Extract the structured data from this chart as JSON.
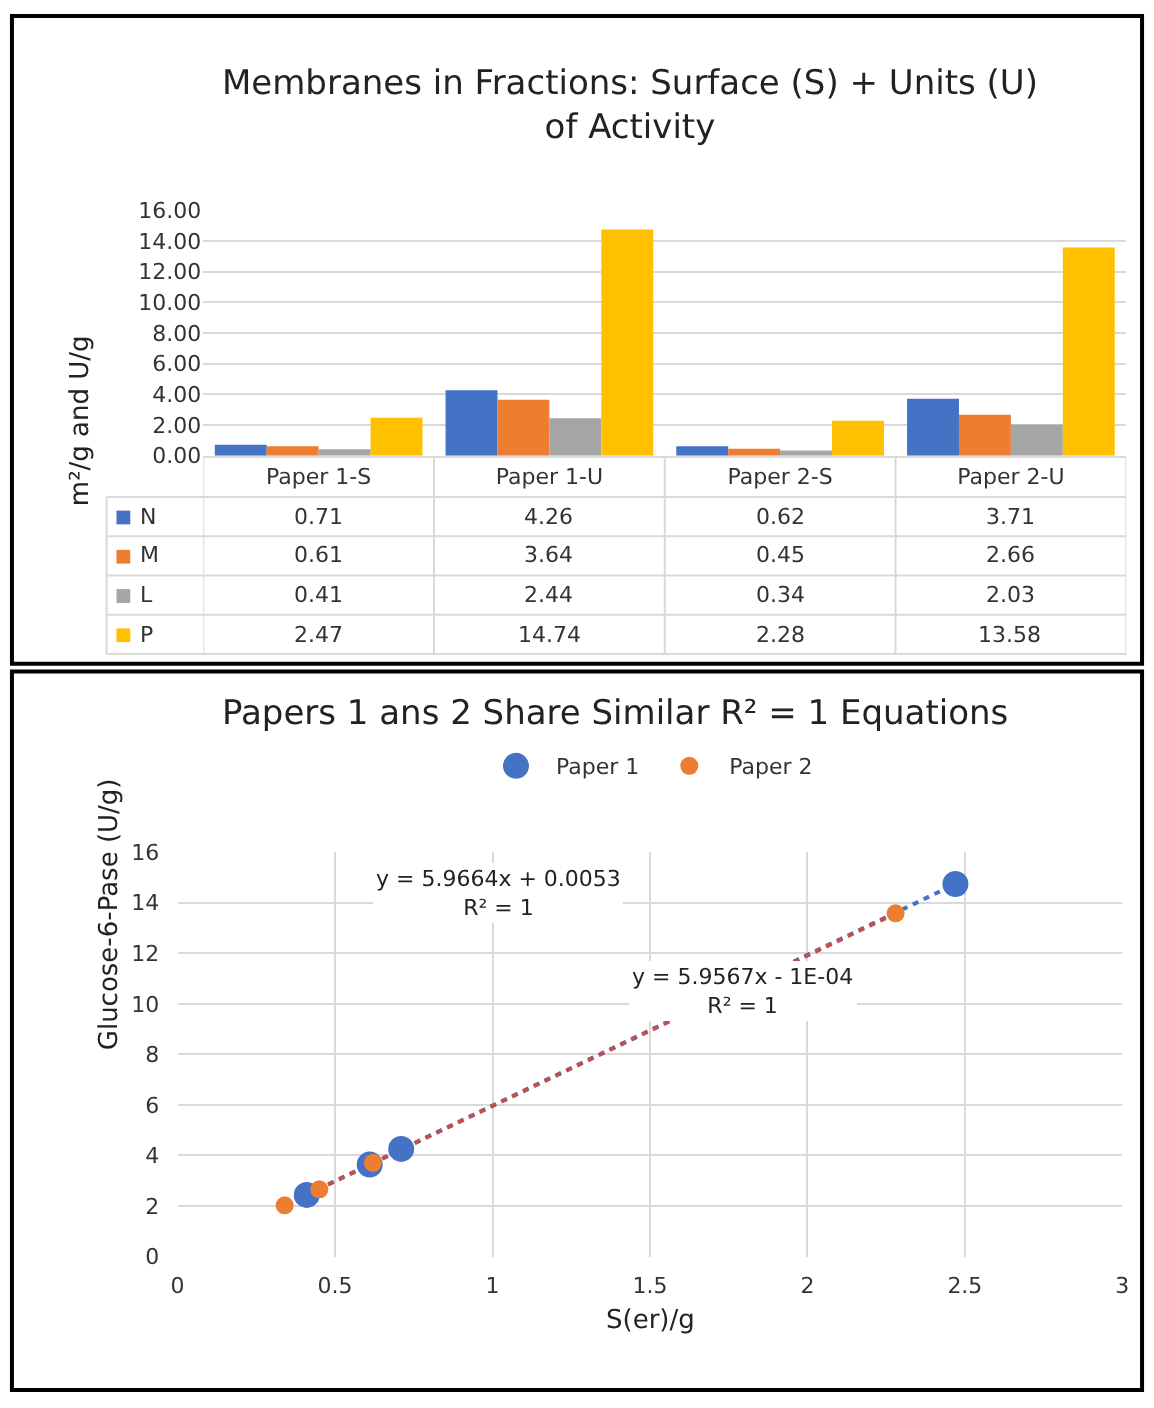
{
  "chart_data": [
    {
      "type": "bar",
      "title": "Membranes in Fractions: Surface (S) + Units (U)\nof Activity",
      "ylabel": "m²/g and U/g",
      "categories": [
        "Paper 1-S",
        "Paper 1-U",
        "Paper 2-S",
        "Paper 2-U"
      ],
      "series": [
        {
          "name": "N",
          "color": "#4472c4",
          "values": [
            0.71,
            4.26,
            0.62,
            3.71
          ]
        },
        {
          "name": "M",
          "color": "#ed7d31",
          "values": [
            0.61,
            3.64,
            0.45,
            2.66
          ]
        },
        {
          "name": "L",
          "color": "#a5a5a5",
          "values": [
            0.41,
            2.44,
            0.34,
            2.03
          ]
        },
        {
          "name": "P",
          "color": "#ffc000",
          "values": [
            2.47,
            14.74,
            2.28,
            13.58
          ]
        }
      ],
      "ylim": [
        0,
        16
      ],
      "yticks": [
        {
          "value": 0,
          "label": "0.00"
        },
        {
          "value": 2,
          "label": "2.00"
        },
        {
          "value": 4,
          "label": "4.00"
        },
        {
          "value": 6,
          "label": "6.00"
        },
        {
          "value": 8,
          "label": "8.00"
        },
        {
          "value": 10,
          "label": "10.00"
        },
        {
          "value": 12,
          "label": "12.00"
        },
        {
          "value": 14,
          "label": "14.00"
        },
        {
          "value": 16,
          "label": "16.00"
        }
      ],
      "grid": "y",
      "data_labels": true,
      "legend": "bottom left"
    },
    {
      "type": "scatter",
      "title": "Papers 1 ans 2 Share Similar R² = 1 Equations",
      "xlabel": "S(er)/g",
      "ylabel": "Glucose-6-Pase (U/g)",
      "series": [
        {
          "name": "Paper 1",
          "color": "#4472c4",
          "marker": "circle",
          "x": [
            0.71,
            0.61,
            0.41,
            2.47
          ],
          "values": [
            4.26,
            3.64,
            2.44,
            14.74
          ]
        },
        {
          "name": "Paper 2",
          "color": "#ed7d31",
          "marker": "circle",
          "x": [
            0.62,
            0.45,
            0.34,
            2.28
          ],
          "values": [
            3.71,
            2.66,
            2.03,
            13.58
          ]
        },
        {
          "type": "line",
          "color": "#4472c4",
          "line_style": "dotted",
          "x": [
            0.41,
            2.47
          ],
          "values": [
            2.45,
            14.74
          ]
        },
        {
          "type": "line",
          "color": "#c0504d",
          "line_style": "dotted",
          "x": [
            0.34,
            2.28
          ],
          "values": [
            2.03,
            13.58
          ]
        }
      ],
      "xlim": [
        0,
        3
      ],
      "xticks": [
        0,
        0.5,
        1,
        1.5,
        2,
        2.5,
        3
      ],
      "ylim": [
        0,
        16
      ],
      "yticks": [
        0,
        2,
        4,
        6,
        8,
        10,
        12,
        14,
        16
      ],
      "annotations": [
        "y = 5.9664x + 0.0053\nR² = 1",
        "y = 5.9567x - 1E-04\nR² = 1"
      ],
      "grid": true,
      "legend": "top"
    }
  ]
}
